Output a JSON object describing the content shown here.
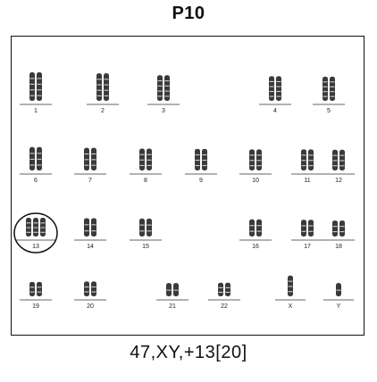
{
  "title": "P10",
  "karyotype": "47,XY,+13[20]",
  "chromosomes": [
    {
      "label": "1",
      "copies": 2,
      "size": 1.0
    },
    {
      "label": "2",
      "copies": 2,
      "size": 0.95
    },
    {
      "label": "3",
      "copies": 2,
      "size": 0.85
    },
    {
      "label": "4",
      "copies": 2,
      "size": 0.8
    },
    {
      "label": "5",
      "copies": 2,
      "size": 0.78
    },
    {
      "label": "6",
      "copies": 2,
      "size": 0.74
    },
    {
      "label": "7",
      "copies": 2,
      "size": 0.7
    },
    {
      "label": "8",
      "copies": 2,
      "size": 0.66
    },
    {
      "label": "9",
      "copies": 2,
      "size": 0.64
    },
    {
      "label": "10",
      "copies": 2,
      "size": 0.62
    },
    {
      "label": "11",
      "copies": 2,
      "size": 0.62
    },
    {
      "label": "12",
      "copies": 2,
      "size": 0.6
    },
    {
      "label": "13",
      "copies": 3,
      "size": 0.5,
      "highlighted": true
    },
    {
      "label": "14",
      "copies": 2,
      "size": 0.48
    },
    {
      "label": "15",
      "copies": 2,
      "size": 0.46
    },
    {
      "label": "16",
      "copies": 2,
      "size": 0.42
    },
    {
      "label": "17",
      "copies": 2,
      "size": 0.4
    },
    {
      "label": "18",
      "copies": 2,
      "size": 0.36
    },
    {
      "label": "19",
      "copies": 2,
      "size": 0.28
    },
    {
      "label": "20",
      "copies": 2,
      "size": 0.3
    },
    {
      "label": "21",
      "copies": 2,
      "size": 0.22
    },
    {
      "label": "22",
      "copies": 2,
      "size": 0.24
    },
    {
      "label": "X",
      "copies": 1,
      "size": 0.6
    },
    {
      "label": "Y",
      "copies": 1,
      "size": 0.22
    }
  ],
  "colors": {
    "chromosome": "#3a3a3a",
    "band": "#cfcfcf",
    "line": "#333333"
  }
}
